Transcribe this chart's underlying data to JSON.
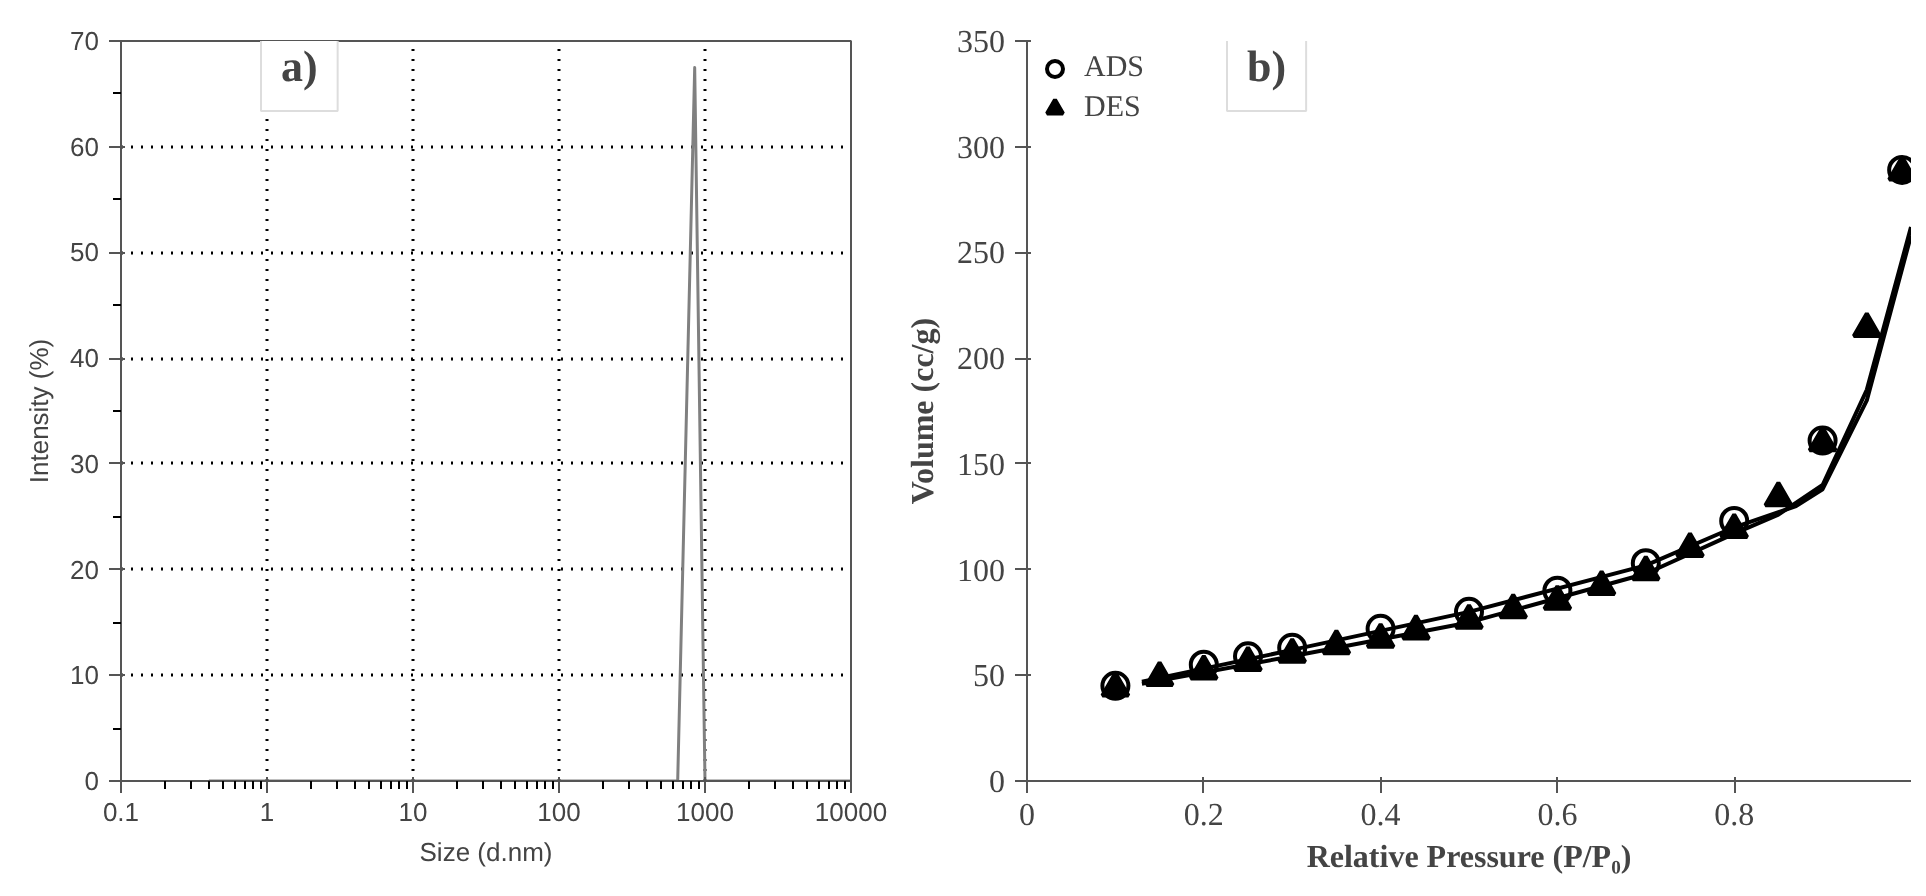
{
  "chart_data": [
    {
      "type": "line",
      "xlabel": "Size (d.nm)",
      "ylabel": "Intensity (%)",
      "log": "x",
      "grid": true,
      "line_style": "solid",
      "xlim": [
        0.1,
        10000
      ],
      "xticks": [
        0.1,
        1,
        10,
        100,
        1000,
        10000
      ],
      "ylim": [
        0,
        70
      ],
      "yticks": [
        0,
        10,
        20,
        30,
        40,
        50,
        60,
        70
      ],
      "annotations": [
        "a)"
      ],
      "series": [
        {
          "color": "#808080",
          "x": [
            0.4,
            650,
            850,
            1000,
            10000
          ],
          "values": [
            0,
            0,
            67.5,
            0,
            0
          ]
        }
      ]
    },
    {
      "type": "scatter",
      "xlabel": "Relative Pressure (P/P₀)",
      "ylabel": "Volume (cc/g)",
      "grid": false,
      "legend": "top left",
      "xlim": [
        0,
        1
      ],
      "xticks": [
        0,
        0.2,
        0.4,
        0.6,
        0.8
      ],
      "ylim": [
        0,
        350
      ],
      "yticks": [
        0,
        50,
        100,
        150,
        200,
        250,
        300,
        350
      ],
      "annotations": [
        "b)"
      ],
      "series": [
        {
          "name": "ADS",
          "color": "#000000",
          "marker": "circle",
          "x": [
            0.1,
            0.2,
            0.25,
            0.3,
            0.4,
            0.5,
            0.6,
            0.7,
            0.8,
            0.9,
            0.99
          ],
          "values": [
            45,
            55,
            59,
            63,
            72,
            80,
            90,
            103,
            123,
            161,
            289
          ]
        },
        {
          "name": "DES",
          "color": "#000000",
          "marker": "triangle",
          "x": [
            0.1,
            0.15,
            0.2,
            0.25,
            0.3,
            0.35,
            0.4,
            0.44,
            0.5,
            0.55,
            0.6,
            0.65,
            0.7,
            0.75,
            0.8,
            0.85,
            0.9,
            0.95,
            0.99
          ],
          "values": [
            44,
            49,
            52,
            56,
            60,
            64,
            67,
            71,
            76,
            81,
            85,
            92,
            99,
            110,
            119,
            134,
            160,
            214,
            288
          ]
        },
        {
          "type": "line",
          "color": "#000000",
          "x": [
            0.13,
            0.3,
            0.5,
            0.7,
            0.8,
            0.87,
            0.9,
            0.95,
            1.0
          ],
          "values": [
            47,
            62,
            80,
            102,
            120,
            130,
            138,
            180,
            258
          ]
        },
        {
          "type": "line",
          "color": "#000000",
          "x": [
            0.13,
            0.3,
            0.5,
            0.7,
            0.8,
            0.85,
            0.9,
            0.95,
            1.0
          ],
          "values": [
            46,
            59,
            75,
            98,
            117,
            126,
            140,
            185,
            262
          ]
        }
      ]
    }
  ]
}
